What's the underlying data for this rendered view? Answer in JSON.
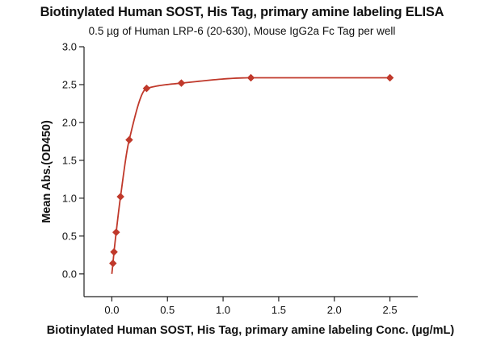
{
  "chart_data": {
    "type": "scatter",
    "title": "Biotinylated Human SOST, His Tag, primary amine labeling ELISA",
    "subtitle": "0.5 µg of Human LRP-6 (20-630), Mouse IgG2a Fc Tag per well",
    "xlabel": "Biotinylated Human SOST, His Tag, primary amine labeling Conc. (µg/mL)",
    "ylabel": "Mean Abs.(OD450)",
    "xlim": [
      -0.25,
      2.75
    ],
    "ylim": [
      -0.3,
      3.0
    ],
    "xticks": [
      0.0,
      0.5,
      1.0,
      1.5,
      2.0,
      2.5
    ],
    "xtick_labels": [
      "0.0",
      "0.5",
      "1.0",
      "1.5",
      "2.0",
      "2.5"
    ],
    "yticks": [
      0.0,
      0.5,
      1.0,
      1.5,
      2.0,
      2.5,
      3.0
    ],
    "ytick_labels": [
      "0.0",
      "0.5",
      "1.0",
      "1.5",
      "2.0",
      "2.5",
      "3.0"
    ],
    "grid": false,
    "legend": "none",
    "marker": "diamond",
    "color": "#c0392b",
    "series": [
      {
        "x": [
          0.0098,
          0.0195,
          0.039,
          0.078,
          0.156,
          0.3125,
          0.625,
          1.25,
          2.5
        ],
        "y": [
          0.14,
          0.29,
          0.55,
          1.02,
          1.77,
          2.45,
          2.52,
          2.59,
          2.59
        ],
        "fit": "sigmoidal"
      }
    ]
  }
}
